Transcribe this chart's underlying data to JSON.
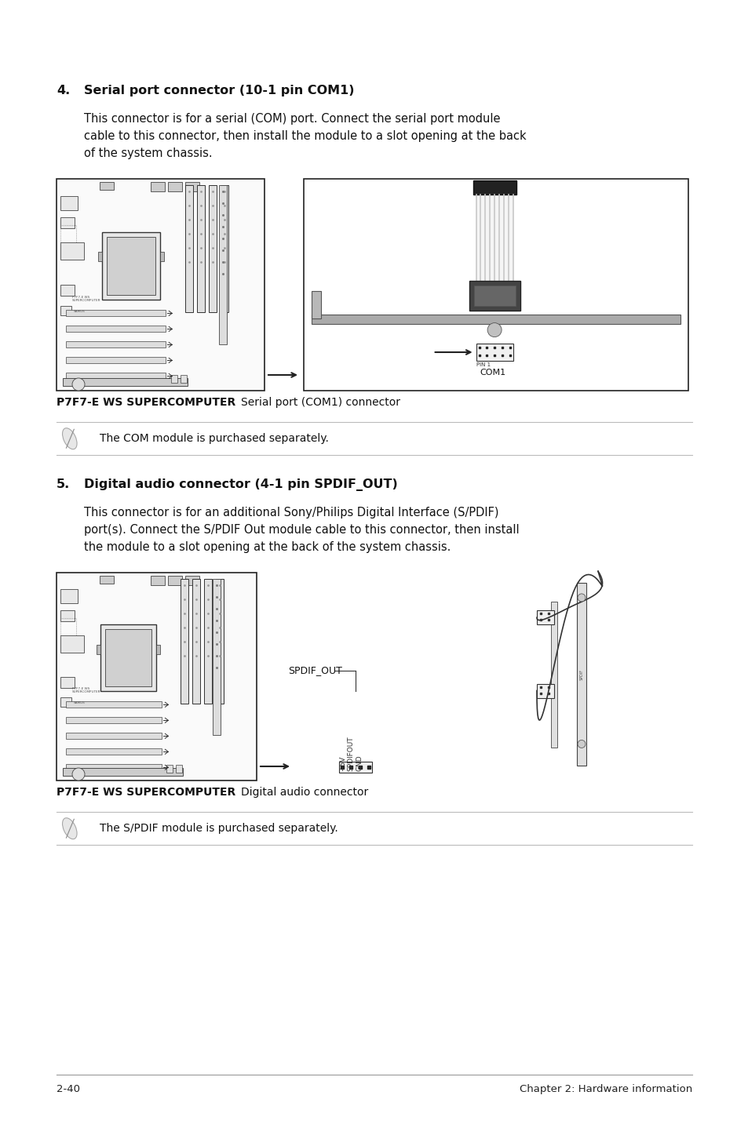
{
  "bg_color": "#ffffff",
  "page_width": 9.54,
  "page_height": 14.38,
  "dpi": 100,
  "footer_left": "2-40",
  "footer_right": "Chapter 2: Hardware information",
  "section4_num": "4.",
  "section4_heading": "Serial port connector (10-1 pin COM1)",
  "section4_body1": "This connector is for a serial (COM) port. Connect the serial port module",
  "section4_body2": "cable to this connector, then install the module to a slot opening at the back",
  "section4_body3": "of the system chassis.",
  "section4_caption_bold": "P7F7-E WS SUPERCOMPUTER ",
  "section4_caption_rest": "Serial port (COM1) connector",
  "section4_note": "The COM module is purchased separately.",
  "section5_num": "5.",
  "section5_heading": "Digital audio connector (4-1 pin SPDIF_OUT)",
  "section5_body1": "This connector is for an additional Sony/Philips Digital Interface (S/PDIF)",
  "section5_body2": "port(s). Connect the S/PDIF Out module cable to this connector, then install",
  "section5_body3": "the module to a slot opening at the back of the system chassis.",
  "section5_caption_bold": "P7F7-E WS SUPERCOMPUTER ",
  "section5_caption_rest": "Digital audio connector",
  "section5_note": "The S/PDIF module is purchased separately.",
  "text_color": "#111111",
  "line_color": "#bbbbbb",
  "heading_fontsize": 11.5,
  "body_fontsize": 10.5,
  "caption_fontsize": 10,
  "note_fontsize": 10,
  "footer_fontsize": 9.5
}
